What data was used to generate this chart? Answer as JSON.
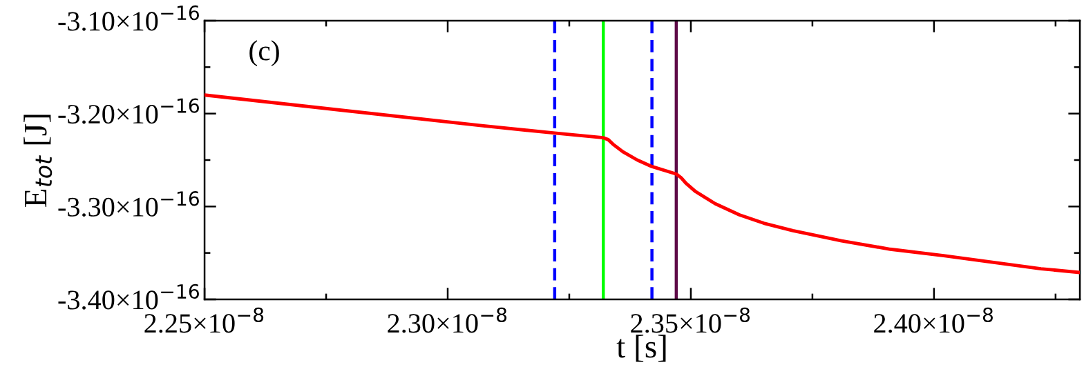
{
  "chart_data": {
    "type": "line",
    "xlabel": "t [s]",
    "ylabel": "E$_{tot}$ [J]",
    "annotations": [
      "(c)"
    ],
    "series": [
      {
        "color": "#ff0000",
        "x": [
          2.25e-08,
          2.307e-08,
          2.322e-08,
          2.332e-08,
          2.333e-08,
          2.334e-08,
          2.336e-08,
          2.339e-08,
          2.342e-08,
          2.347e-08,
          2.348e-08,
          2.349e-08,
          2.351e-08,
          2.355e-08,
          2.36e-08,
          2.365e-08,
          2.371e-08,
          2.381e-08,
          2.391e-08,
          2.402e-08,
          2.412e-08,
          2.422e-08,
          2.43e-08
        ],
        "values": [
          -3.18e-16,
          -3.213e-16,
          -3.221e-16,
          -3.226e-16,
          -3.228e-16,
          -3.233e-16,
          -3.241e-16,
          -3.25e-16,
          -3.257e-16,
          -3.265e-16,
          -3.269e-16,
          -3.275e-16,
          -3.284e-16,
          -3.297e-16,
          -3.309e-16,
          -3.318e-16,
          -3.326e-16,
          -3.337e-16,
          -3.346e-16,
          -3.353e-16,
          -3.36e-16,
          -3.367e-16,
          -3.371e-16
        ]
      }
    ],
    "ref_lines": [
      {
        "axis": "x",
        "value": 2.322e-08,
        "color": "#0000ff",
        "line_style": "dashed"
      },
      {
        "axis": "x",
        "value": 2.332e-08,
        "color": "#00ff00",
        "line_style": "solid"
      },
      {
        "axis": "x",
        "value": 2.342e-08,
        "color": "#0000ff",
        "line_style": "dashed"
      },
      {
        "axis": "x",
        "value": 2.347e-08,
        "color": "#5e0a47",
        "line_style": "solid"
      }
    ],
    "xlim": [
      2.25e-08,
      2.43e-08
    ],
    "xticks": [
      {
        "value": 2.25e-08,
        "label": "2.25×10$^{−8}$"
      },
      {
        "value": 2.3e-08,
        "label": "2.30×10$^{−8}$"
      },
      {
        "value": 2.35e-08,
        "label": "2.35×10$^{−8}$"
      },
      {
        "value": 2.4e-08,
        "label": "2.40×10$^{−8}$"
      }
    ],
    "ylim": [
      -3.4e-16,
      -3.1e-16
    ],
    "yticks": [
      {
        "value": -3.4e-16,
        "label": "-3.40×10$^{−16}$"
      },
      {
        "value": -3.3e-16,
        "label": "-3.30×10$^{−16}$"
      },
      {
        "value": -3.2e-16,
        "label": "-3.20×10$^{−16}$"
      },
      {
        "value": -3.1e-16,
        "label": "-3.10×10$^{−16}$"
      }
    ],
    "grid": false,
    "marker": "none",
    "line_style": "solid"
  }
}
